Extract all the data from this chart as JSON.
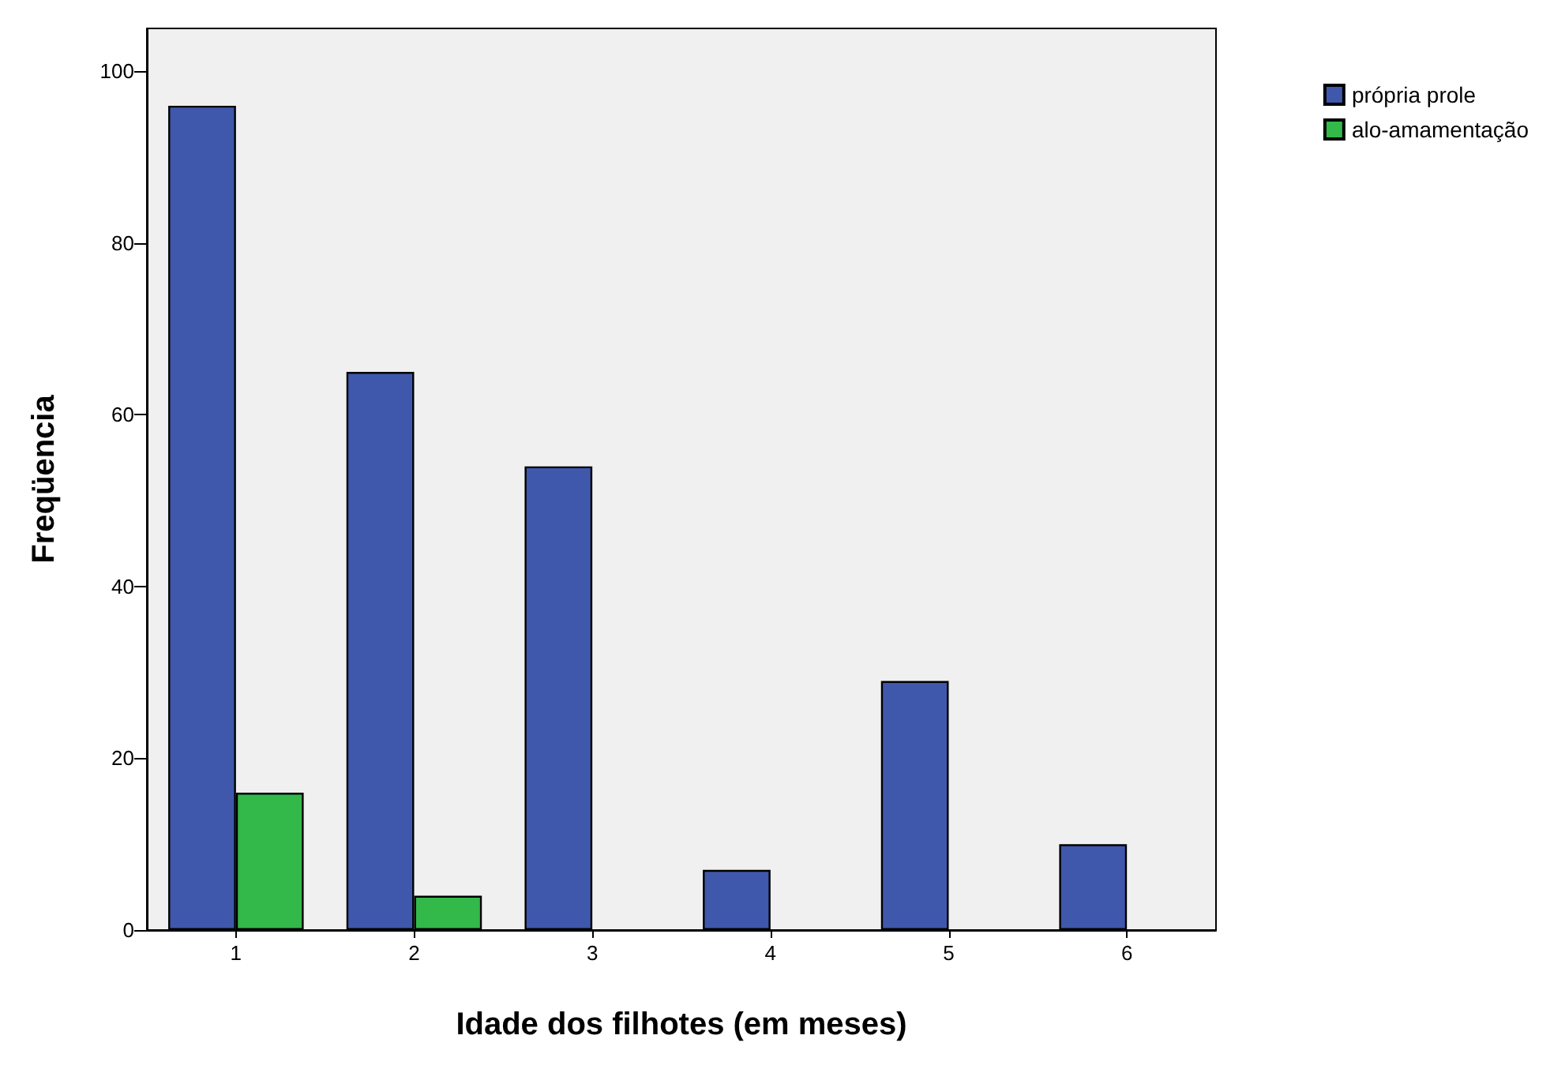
{
  "chart_data": {
    "type": "bar",
    "xlabel": "Idade dos filhotes (em meses)",
    "ylabel": "Freqüencia",
    "categories": [
      "1",
      "2",
      "3",
      "4",
      "5",
      "6"
    ],
    "series": [
      {
        "name": "própria prole",
        "color": "#3f58ab",
        "values": [
          96,
          65,
          54,
          7,
          29,
          10
        ]
      },
      {
        "name": "alo-amamentação",
        "color": "#33b84a",
        "values": [
          16,
          4,
          null,
          null,
          null,
          null
        ]
      }
    ],
    "ylim": [
      0,
      105
    ],
    "yticks": [
      0,
      20,
      40,
      60,
      80,
      100
    ],
    "grid": false,
    "legend": "top right"
  }
}
